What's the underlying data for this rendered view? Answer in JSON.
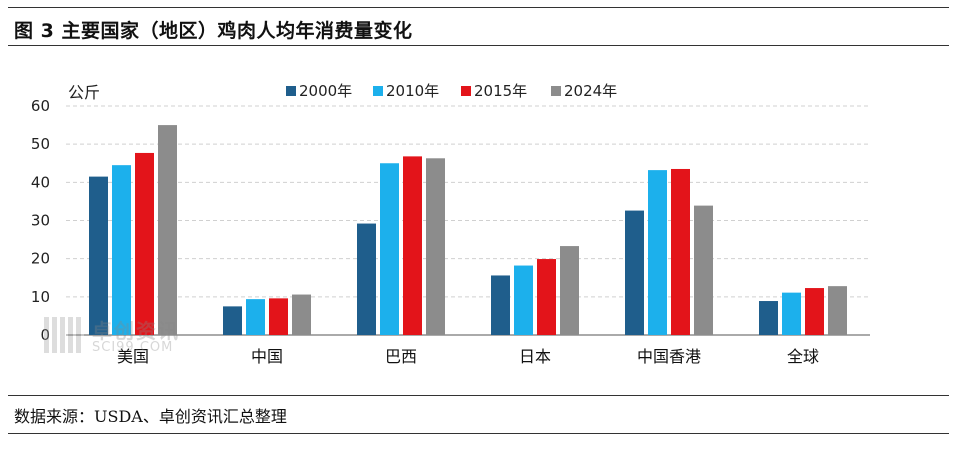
{
  "title": "图 3 主要国家（地区）鸡肉人均年消费量变化",
  "source": "数据来源：USDA、卓创资讯汇总整理",
  "watermark": {
    "cn": "卓创资讯",
    "en": "SCI99.COM"
  },
  "colors": {
    "series": [
      "#1F5E8C",
      "#1CB0EC",
      "#E3141A",
      "#8C8C8C"
    ],
    "grid": "#d0d0d0",
    "axis": "#555555"
  },
  "chart_data": {
    "type": "bar",
    "title": "",
    "ylabel": "公斤",
    "xlabel": "",
    "ylim": [
      0,
      60
    ],
    "yticks": [
      0,
      10,
      20,
      30,
      40,
      50,
      60
    ],
    "grid": "horizontal-dashed",
    "legend_position": "top",
    "categories": [
      "美国",
      "中国",
      "巴西",
      "日本",
      "中国香港",
      "全球"
    ],
    "series": [
      {
        "name": "2000年",
        "values": [
          41.5,
          7.5,
          29.2,
          15.6,
          32.6,
          8.9
        ]
      },
      {
        "name": "2010年",
        "values": [
          44.5,
          9.4,
          45.0,
          18.2,
          43.2,
          11.1
        ]
      },
      {
        "name": "2015年",
        "values": [
          47.7,
          9.6,
          46.8,
          19.9,
          43.5,
          12.3
        ]
      },
      {
        "name": "2024年",
        "values": [
          55.0,
          10.6,
          46.3,
          23.3,
          33.9,
          12.8
        ]
      }
    ]
  }
}
